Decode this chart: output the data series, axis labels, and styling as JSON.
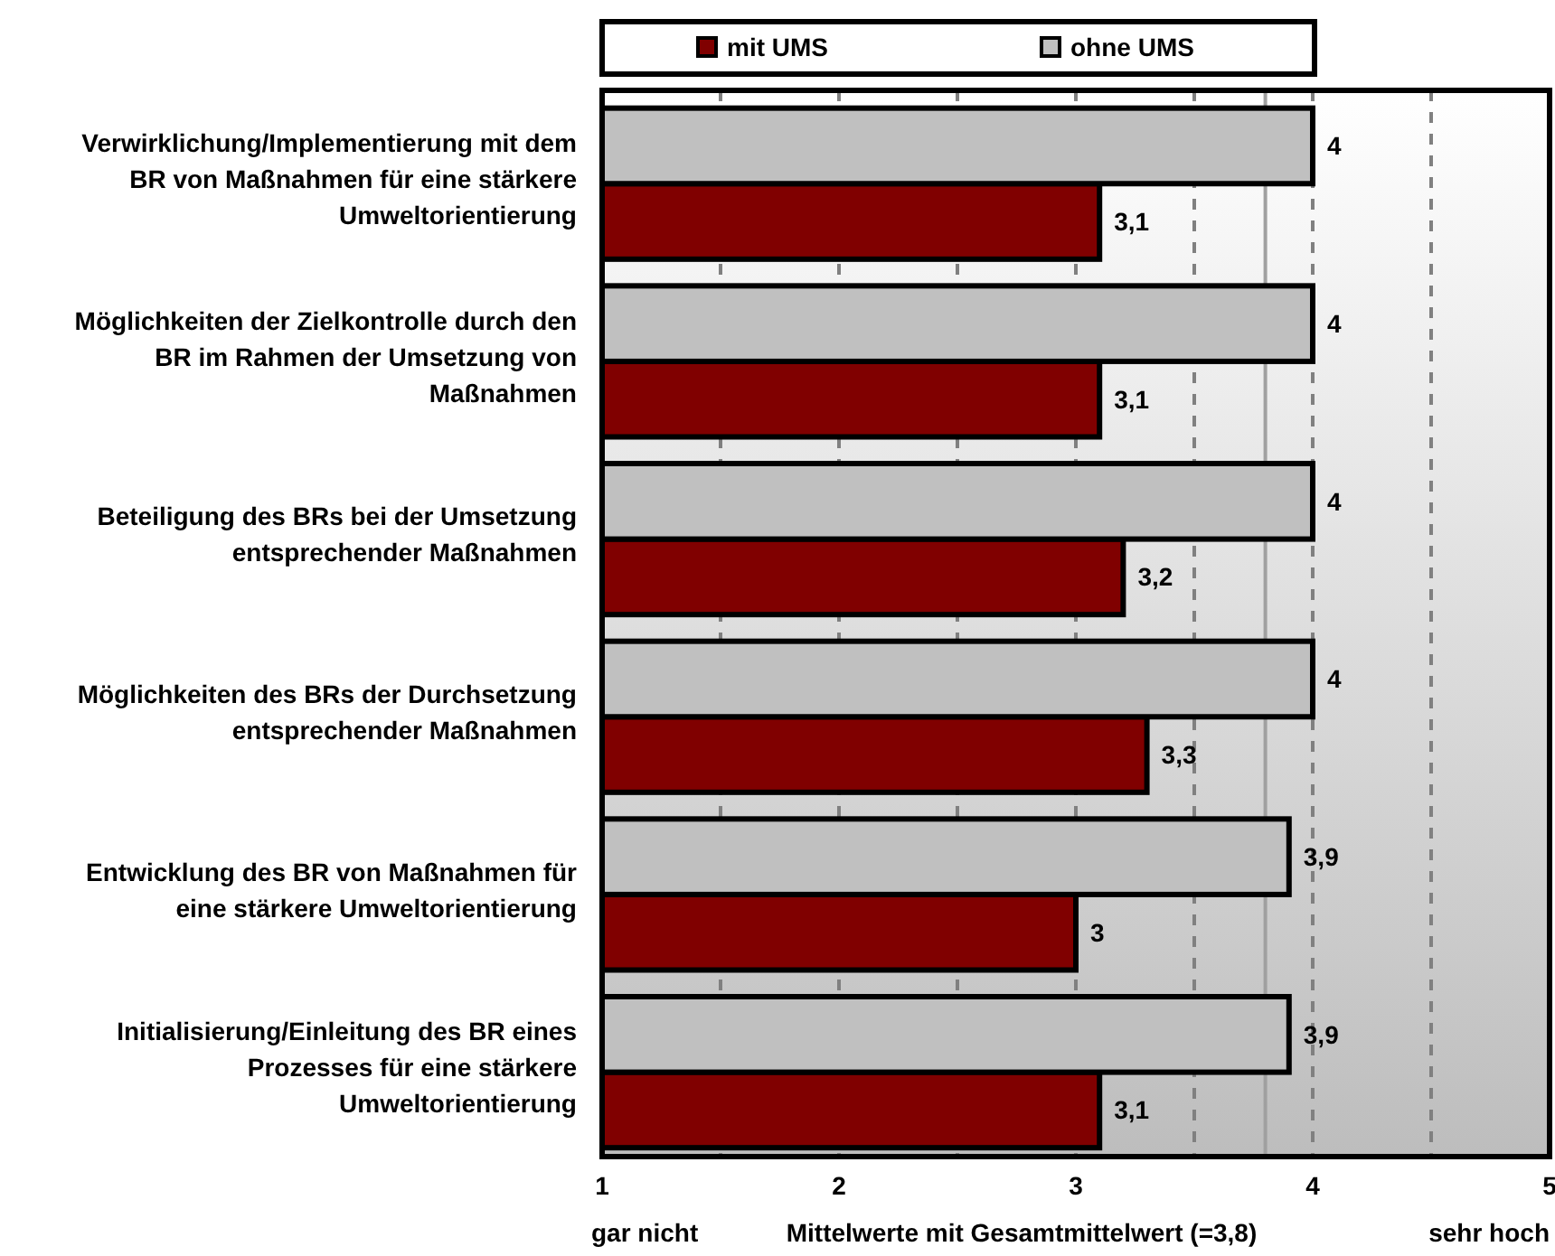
{
  "chart_data": {
    "type": "bar",
    "orientation": "horizontal",
    "categories": [
      "Verwirklichung/Implementierung mit dem BR von Maßnahmen für eine stärkere Umweltorientierung",
      "Möglichkeiten der Zielkontrolle durch den BR im Rahmen der Umsetzung von Maßnahmen",
      "Beteiligung des BRs bei der Umsetzung entsprechender Maßnahmen",
      "Möglichkeiten des BRs der Durchsetzung entsprechender Maßnahmen",
      "Entwicklung des BR von Maßnahmen für eine stärkere Umweltorientierung",
      "Initialisierung/Einleitung des BR eines Prozesses für eine stärkere Umweltorientierung"
    ],
    "series": [
      {
        "name": "mit UMS",
        "color": "#800000",
        "values": [
          3.1,
          3.1,
          3.2,
          3.3,
          3.0,
          3.1
        ],
        "value_labels": [
          "3,1",
          "3,1",
          "3,2",
          "3,3",
          "3",
          "3,1"
        ]
      },
      {
        "name": "ohne UMS",
        "color": "#c0c0c0",
        "values": [
          4,
          4,
          4,
          4,
          3.9,
          3.9
        ],
        "value_labels": [
          "4",
          "4",
          "4",
          "4",
          "3,9",
          "3,9"
        ]
      }
    ],
    "xlim": [
      1,
      5
    ],
    "xticks": [
      1,
      {
        "value": 1.5,
        "label": null
      },
      2,
      {
        "value": 2.5,
        "label": null
      },
      3,
      {
        "value": 3.5,
        "label": null
      },
      4,
      {
        "value": 4.5,
        "label": null
      },
      5
    ],
    "grid": "x",
    "legend": "top",
    "xlabel": "Mittelwerte mit Gesamtmittelwert (=3,8)",
    "annotations": [
      "gar nicht",
      "sehr hoch"
    ],
    "ref_lines": [
      {
        "axis": "x",
        "value": 3.8,
        "label": null,
        "color": "#a0a0a0"
      }
    ]
  }
}
